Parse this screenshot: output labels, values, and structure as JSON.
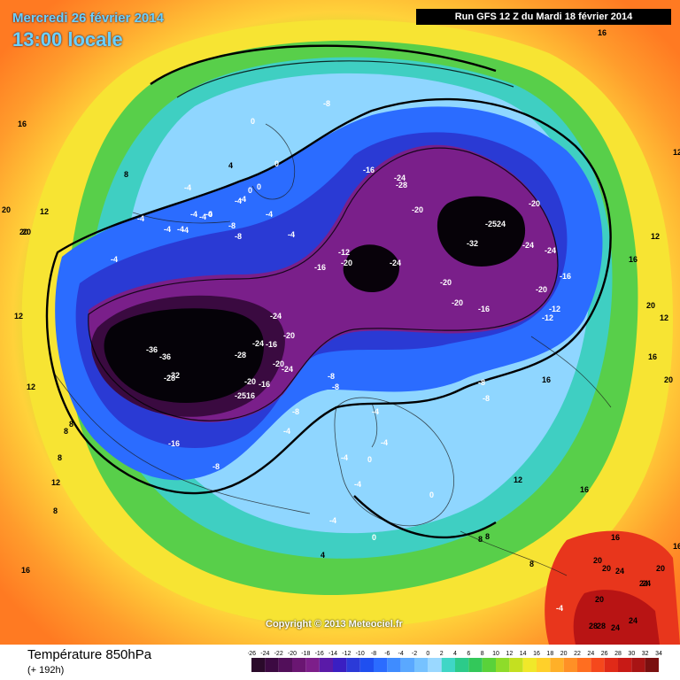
{
  "header": {
    "date": "Mercredi 26 février 2014",
    "local_time": "13:00 locale",
    "run": "Run GFS 12 Z du Mardi 18 février 2014"
  },
  "copyright": "Copyright © 2013 Meteociel.fr",
  "footer": {
    "title": "Température 850hPa",
    "forecast_hour": "(+ 192h)"
  },
  "legend": {
    "ticks": [
      "-26",
      "-24",
      "-22",
      "-20",
      "-18",
      "-16",
      "-14",
      "-12",
      "-10",
      "-8",
      "-6",
      "-4",
      "-2",
      "0",
      "2",
      "4",
      "6",
      "8",
      "10",
      "12",
      "14",
      "16",
      "18",
      "20",
      "22",
      "24",
      "26",
      "28",
      "30",
      "32",
      "34"
    ],
    "colors": [
      "#2a0a2a",
      "#3c0a42",
      "#520f5a",
      "#6a1672",
      "#7d1f8a",
      "#5a1aa8",
      "#3a1fc2",
      "#2b3ad8",
      "#1f4ff0",
      "#2b6cff",
      "#3f8cff",
      "#5aa8ff",
      "#76c2ff",
      "#9ad8ff",
      "#3fd6c6",
      "#2ccb8a",
      "#33c85a",
      "#59d23a",
      "#8edc2a",
      "#c4e020",
      "#f0e82a",
      "#ffd02a",
      "#ffb028",
      "#ff9026",
      "#ff6e20",
      "#f5481c",
      "#e02a18",
      "#c81a16",
      "#a81414",
      "#7a1010"
    ]
  },
  "map_labels": [
    {
      "t": "-36",
      "c": "w"
    },
    {
      "t": "-36",
      "c": "w"
    },
    {
      "t": "-32",
      "c": "w"
    },
    {
      "t": "-28",
      "c": "w"
    },
    {
      "t": "-28",
      "c": "w"
    },
    {
      "t": "-24",
      "c": "w"
    },
    {
      "t": "-24",
      "c": "w"
    },
    {
      "t": "-20",
      "c": "w"
    },
    {
      "t": "-16",
      "c": "w"
    },
    {
      "t": "-20",
      "c": "w"
    },
    {
      "t": "-24",
      "c": "w"
    },
    {
      "t": "-20",
      "c": "w"
    },
    {
      "t": "-16",
      "c": "w"
    },
    {
      "t": "-2516",
      "c": "w"
    },
    {
      "t": "-16",
      "c": "w"
    },
    {
      "t": "-8",
      "c": "w"
    },
    {
      "t": "-24",
      "c": "w"
    },
    {
      "t": "-28",
      "c": "w"
    },
    {
      "t": "-20",
      "c": "w"
    },
    {
      "t": "-16",
      "c": "w"
    },
    {
      "t": "-2524",
      "c": "w"
    },
    {
      "t": "-32",
      "c": "w"
    },
    {
      "t": "-24",
      "c": "w"
    },
    {
      "t": "-20",
      "c": "w"
    },
    {
      "t": "-24",
      "c": "w"
    },
    {
      "t": "-24",
      "c": "w"
    },
    {
      "t": "-20",
      "c": "w"
    },
    {
      "t": "-20",
      "c": "w"
    },
    {
      "t": "-20",
      "c": "w"
    },
    {
      "t": "-16",
      "c": "w"
    },
    {
      "t": "-20",
      "c": "w"
    },
    {
      "t": "-12",
      "c": "w"
    },
    {
      "t": "-12",
      "c": "w"
    },
    {
      "t": "-16",
      "c": "w"
    },
    {
      "t": "-16",
      "c": "w"
    },
    {
      "t": "-8",
      "c": "w"
    },
    {
      "t": "-12",
      "c": "w"
    },
    {
      "t": "-8",
      "c": "w"
    },
    {
      "t": "-8",
      "c": "w"
    },
    {
      "t": "-4",
      "c": "w"
    },
    {
      "t": "-4",
      "c": "w"
    },
    {
      "t": "-8",
      "c": "w"
    },
    {
      "t": "-8",
      "c": "w"
    },
    {
      "t": "-4",
      "c": "w"
    },
    {
      "t": "-4",
      "c": "w"
    },
    {
      "t": "-8",
      "c": "w"
    },
    {
      "t": "-8",
      "c": "w"
    },
    {
      "t": "-4",
      "c": "w"
    },
    {
      "t": "-4",
      "c": "w"
    },
    {
      "t": "-4",
      "c": "w"
    },
    {
      "t": "-4",
      "c": "w"
    },
    {
      "t": "-4",
      "c": "w"
    },
    {
      "t": "0",
      "c": "w"
    },
    {
      "t": "0",
      "c": "w"
    },
    {
      "t": "0",
      "c": "w"
    },
    {
      "t": "0",
      "c": "w"
    },
    {
      "t": "0",
      "c": "w"
    },
    {
      "t": "-4",
      "c": "w"
    },
    {
      "t": "-4",
      "c": "w"
    },
    {
      "t": "-4",
      "c": "w"
    },
    {
      "t": "4",
      "c": "w"
    },
    {
      "t": "8",
      "c": "w"
    },
    {
      "t": "8",
      "c": "w"
    },
    {
      "t": "0",
      "c": "w"
    },
    {
      "t": "-4",
      "c": "w"
    },
    {
      "t": "-8",
      "c": "w"
    },
    {
      "t": "-4",
      "c": "w"
    },
    {
      "t": "-4",
      "c": "w"
    },
    {
      "t": "-4",
      "c": "w"
    },
    {
      "t": "-4",
      "c": "w"
    },
    {
      "t": "-4",
      "c": "w"
    },
    {
      "t": "-4",
      "c": "w"
    },
    {
      "t": "0",
      "c": "w"
    },
    {
      "t": "0",
      "c": "w"
    },
    {
      "t": "4",
      "c": "w"
    },
    {
      "t": "8",
      "c": "w"
    },
    {
      "t": "8",
      "c": "w"
    },
    {
      "t": "8",
      "c": "w"
    },
    {
      "t": "8",
      "c": "w"
    },
    {
      "t": "-4",
      "c": "w"
    },
    {
      "t": "16",
      "c": "w"
    },
    {
      "t": "16",
      "c": "w"
    },
    {
      "t": "12",
      "c": "w"
    },
    {
      "t": "12",
      "c": "w"
    },
    {
      "t": "20",
      "c": "w"
    },
    {
      "t": "20",
      "c": "w"
    },
    {
      "t": "12",
      "c": "w"
    },
    {
      "t": "20",
      "c": "w"
    },
    {
      "t": "16",
      "c": "w"
    },
    {
      "t": "16",
      "c": "w"
    },
    {
      "t": "12",
      "c": "w"
    },
    {
      "t": "8",
      "c": "w"
    },
    {
      "t": "8",
      "c": "w"
    },
    {
      "t": "12",
      "c": "w"
    },
    {
      "t": "12",
      "c": "w"
    },
    {
      "t": "16",
      "c": "w"
    },
    {
      "t": "16",
      "c": "w"
    },
    {
      "t": "16",
      "c": "w"
    },
    {
      "t": "20",
      "c": "w"
    },
    {
      "t": "20",
      "c": "w"
    },
    {
      "t": "12",
      "c": "w"
    },
    {
      "t": "12",
      "c": "w"
    },
    {
      "t": "16",
      "c": "w"
    },
    {
      "t": "16",
      "c": "w"
    },
    {
      "t": "20",
      "c": "w"
    },
    {
      "t": "20",
      "c": "w"
    },
    {
      "t": "24",
      "c": "w"
    },
    {
      "t": "24",
      "c": "w"
    },
    {
      "t": "28",
      "c": "w"
    },
    {
      "t": "28",
      "c": "w"
    },
    {
      "t": "24",
      "c": "w"
    },
    {
      "t": "24",
      "c": "w"
    },
    {
      "t": "20",
      "c": "w"
    },
    {
      "t": "20",
      "c": "w"
    },
    {
      "t": "24",
      "c": "w"
    }
  ]
}
